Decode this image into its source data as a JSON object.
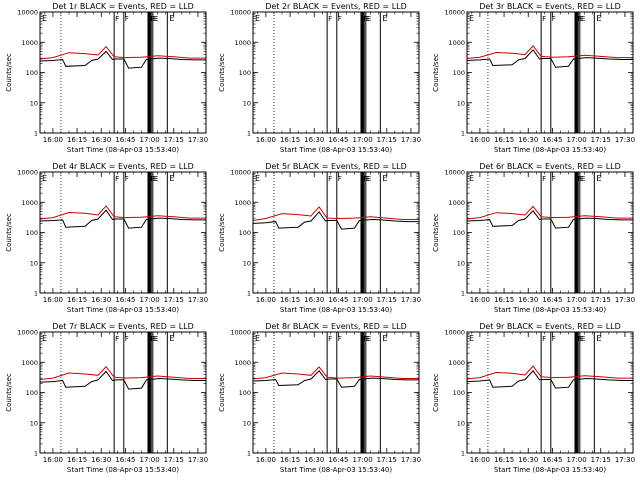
{
  "chart_data": [
    {
      "type": "line",
      "title": "Det 1r  BLACK = Events, RED = LLD",
      "xlabel": "Start Time (08-Apr-03 15:53:40)",
      "ylabel": "Counts/sec",
      "x_tick_labels": [
        "16:00",
        "16:15",
        "16:30",
        "16:45",
        "17:00",
        "17:15",
        "17:30"
      ],
      "xlim": [
        "15:52",
        "17:35"
      ],
      "y_scale": "log",
      "ylim": [
        1,
        10000
      ],
      "y_tick_labels": [
        "1",
        "10",
        "100",
        "1000",
        "10000"
      ],
      "series": [
        {
          "name": "Events",
          "color": "#000000",
          "x": [
            "15:52",
            "16:00",
            "16:06",
            "16:08",
            "16:20",
            "16:24",
            "16:28",
            "16:33",
            "16:37",
            "16:39",
            "16:44",
            "16:47",
            "16:55",
            "16:58",
            "17:06",
            "17:12",
            "17:20",
            "17:28",
            "17:35"
          ],
          "values": [
            240,
            250,
            270,
            160,
            170,
            250,
            280,
            500,
            270,
            280,
            280,
            140,
            150,
            270,
            300,
            290,
            270,
            260,
            260
          ]
        },
        {
          "name": "LLD",
          "color": "#cc0000",
          "x": [
            "15:52",
            "16:00",
            "16:10",
            "16:20",
            "16:28",
            "16:33",
            "16:38",
            "16:45",
            "16:55",
            "17:05",
            "17:15",
            "17:25",
            "17:35"
          ],
          "values": [
            280,
            310,
            450,
            420,
            380,
            720,
            330,
            310,
            320,
            360,
            330,
            300,
            300
          ]
        }
      ]
    },
    {
      "type": "line",
      "title": "Det 2r  BLACK = Events, RED = LLD",
      "xlabel": "Start Time (08-Apr-03 15:53:40)",
      "ylabel": "Counts/sec",
      "x_tick_labels": [
        "16:00",
        "16:15",
        "16:30",
        "16:45",
        "17:00",
        "17:15",
        "17:30"
      ],
      "xlim": [
        "15:52",
        "17:35"
      ],
      "y_scale": "log",
      "ylim": [
        1,
        10000
      ],
      "y_tick_labels": [
        "1",
        "10",
        "100",
        "1000",
        "10000"
      ],
      "series": []
    },
    {
      "type": "line",
      "title": "Det 3r  BLACK = Events, RED = LLD",
      "xlabel": "Start Time (08-Apr-03 15:53:40)",
      "ylabel": "Counts/sec",
      "x_tick_labels": [
        "16:00",
        "16:15",
        "16:30",
        "16:45",
        "17:00",
        "17:15",
        "17:30"
      ],
      "xlim": [
        "15:52",
        "17:35"
      ],
      "y_scale": "log",
      "ylim": [
        1,
        10000
      ],
      "y_tick_labels": [
        "1",
        "10",
        "100",
        "1000",
        "10000"
      ],
      "series": [
        {
          "name": "Events",
          "color": "#000000",
          "x": [
            "15:52",
            "16:00",
            "16:06",
            "16:08",
            "16:20",
            "16:24",
            "16:28",
            "16:33",
            "16:37",
            "16:39",
            "16:44",
            "16:47",
            "16:55",
            "16:58",
            "17:06",
            "17:12",
            "17:20",
            "17:28",
            "17:35"
          ],
          "values": [
            250,
            260,
            280,
            170,
            180,
            260,
            290,
            560,
            280,
            290,
            290,
            150,
            160,
            280,
            310,
            300,
            280,
            270,
            270
          ]
        },
        {
          "name": "LLD",
          "color": "#cc0000",
          "x": [
            "15:52",
            "16:00",
            "16:10",
            "16:20",
            "16:28",
            "16:33",
            "16:38",
            "16:45",
            "16:55",
            "17:05",
            "17:15",
            "17:25",
            "17:35"
          ],
          "values": [
            290,
            320,
            460,
            430,
            390,
            760,
            340,
            320,
            330,
            370,
            340,
            310,
            310
          ]
        }
      ]
    },
    {
      "type": "line",
      "title": "Det 4r  BLACK = Events, RED = LLD",
      "xlabel": "Start Time (08-Apr-03 15:53:40)",
      "ylabel": "Counts/sec",
      "x_tick_labels": [
        "16:00",
        "16:15",
        "16:30",
        "16:45",
        "17:00",
        "17:15",
        "17:30"
      ],
      "xlim": [
        "15:52",
        "17:35"
      ],
      "y_scale": "log",
      "ylim": [
        1,
        10000
      ],
      "y_tick_labels": [
        "1",
        "10",
        "100",
        "1000",
        "10000"
      ],
      "series": [
        {
          "name": "Events",
          "color": "#000000",
          "x": [
            "15:52",
            "16:00",
            "16:06",
            "16:08",
            "16:20",
            "16:24",
            "16:28",
            "16:33",
            "16:37",
            "16:39",
            "16:44",
            "16:47",
            "16:55",
            "16:58",
            "17:06",
            "17:12",
            "17:20",
            "17:28",
            "17:35"
          ],
          "values": [
            240,
            250,
            260,
            150,
            160,
            250,
            280,
            540,
            270,
            280,
            280,
            140,
            150,
            270,
            300,
            290,
            270,
            260,
            260
          ]
        },
        {
          "name": "LLD",
          "color": "#cc0000",
          "x": [
            "15:52",
            "16:00",
            "16:10",
            "16:20",
            "16:28",
            "16:33",
            "16:38",
            "16:45",
            "16:55",
            "17:05",
            "17:15",
            "17:25",
            "17:35"
          ],
          "values": [
            280,
            310,
            460,
            430,
            380,
            750,
            330,
            310,
            320,
            360,
            330,
            300,
            300
          ]
        }
      ]
    },
    {
      "type": "line",
      "title": "Det 5r  BLACK = Events, RED = LLD",
      "xlabel": "Start Time (08-Apr-03 15:53:40)",
      "ylabel": "Counts/sec",
      "x_tick_labels": [
        "16:00",
        "16:15",
        "16:30",
        "16:45",
        "17:00",
        "17:15",
        "17:30"
      ],
      "xlim": [
        "15:52",
        "17:35"
      ],
      "y_scale": "log",
      "ylim": [
        1,
        10000
      ],
      "y_tick_labels": [
        "1",
        "10",
        "100",
        "1000",
        "10000"
      ],
      "series": [
        {
          "name": "Events",
          "color": "#000000",
          "x": [
            "15:52",
            "16:00",
            "16:06",
            "16:08",
            "16:20",
            "16:24",
            "16:28",
            "16:33",
            "16:37",
            "16:39",
            "16:44",
            "16:47",
            "16:55",
            "16:58",
            "17:06",
            "17:12",
            "17:20",
            "17:28",
            "17:35"
          ],
          "values": [
            200,
            210,
            230,
            140,
            150,
            220,
            240,
            480,
            240,
            250,
            250,
            130,
            140,
            250,
            270,
            260,
            240,
            230,
            230
          ]
        },
        {
          "name": "LLD",
          "color": "#cc0000",
          "x": [
            "15:52",
            "16:00",
            "16:10",
            "16:20",
            "16:28",
            "16:33",
            "16:38",
            "16:45",
            "16:55",
            "17:05",
            "17:15",
            "17:25",
            "17:35"
          ],
          "values": [
            250,
            290,
            420,
            390,
            350,
            700,
            300,
            290,
            300,
            330,
            300,
            270,
            270
          ]
        }
      ]
    },
    {
      "type": "line",
      "title": "Det 6r  BLACK = Events, RED = LLD",
      "xlabel": "Start Time (08-Apr-03 15:53:40)",
      "ylabel": "Counts/sec",
      "x_tick_labels": [
        "16:00",
        "16:15",
        "16:30",
        "16:45",
        "17:00",
        "17:15",
        "17:30"
      ],
      "xlim": [
        "15:52",
        "17:35"
      ],
      "y_scale": "log",
      "ylim": [
        1,
        10000
      ],
      "y_tick_labels": [
        "1",
        "10",
        "100",
        "1000",
        "10000"
      ],
      "series": [
        {
          "name": "Events",
          "color": "#000000",
          "x": [
            "15:52",
            "16:00",
            "16:06",
            "16:08",
            "16:20",
            "16:24",
            "16:28",
            "16:33",
            "16:37",
            "16:39",
            "16:44",
            "16:47",
            "16:55",
            "16:58",
            "17:06",
            "17:12",
            "17:20",
            "17:28",
            "17:35"
          ],
          "values": [
            240,
            250,
            270,
            160,
            170,
            250,
            280,
            520,
            270,
            280,
            280,
            140,
            150,
            270,
            300,
            290,
            270,
            260,
            260
          ]
        },
        {
          "name": "LLD",
          "color": "#cc0000",
          "x": [
            "15:52",
            "16:00",
            "16:10",
            "16:20",
            "16:28",
            "16:33",
            "16:38",
            "16:45",
            "16:55",
            "17:05",
            "17:15",
            "17:25",
            "17:35"
          ],
          "values": [
            280,
            310,
            450,
            420,
            380,
            730,
            330,
            310,
            320,
            360,
            330,
            300,
            300
          ]
        }
      ]
    },
    {
      "type": "line",
      "title": "Det 7r  BLACK = Events, RED = LLD",
      "xlabel": "Start Time (08-Apr-03 15:53:40)",
      "ylabel": "Counts/sec",
      "x_tick_labels": [
        "16:00",
        "16:15",
        "16:30",
        "16:45",
        "17:00",
        "17:15",
        "17:30"
      ],
      "xlim": [
        "15:52",
        "17:35"
      ],
      "y_scale": "log",
      "ylim": [
        1,
        10000
      ],
      "y_tick_labels": [
        "1",
        "10",
        "100",
        "1000",
        "10000"
      ],
      "series": [
        {
          "name": "Events",
          "color": "#000000",
          "x": [
            "15:52",
            "16:00",
            "16:06",
            "16:08",
            "16:20",
            "16:24",
            "16:28",
            "16:33",
            "16:37",
            "16:39",
            "16:44",
            "16:47",
            "16:55",
            "16:58",
            "17:06",
            "17:12",
            "17:20",
            "17:28",
            "17:35"
          ],
          "values": [
            220,
            230,
            250,
            150,
            160,
            230,
            260,
            500,
            250,
            260,
            260,
            130,
            140,
            260,
            290,
            280,
            260,
            250,
            250
          ]
        },
        {
          "name": "LLD",
          "color": "#cc0000",
          "x": [
            "15:52",
            "16:00",
            "16:10",
            "16:20",
            "16:28",
            "16:33",
            "16:38",
            "16:45",
            "16:55",
            "17:05",
            "17:15",
            "17:25",
            "17:35"
          ],
          "values": [
            270,
            300,
            440,
            410,
            370,
            720,
            320,
            300,
            310,
            350,
            320,
            290,
            290
          ]
        }
      ]
    },
    {
      "type": "line",
      "title": "Det 8r  BLACK = Events, RED = LLD",
      "xlabel": "Start Time (08-Apr-03 15:53:40)",
      "ylabel": "Counts/sec",
      "x_tick_labels": [
        "16:00",
        "16:15",
        "16:30",
        "16:45",
        "17:00",
        "17:15",
        "17:30"
      ],
      "xlim": [
        "15:52",
        "17:35"
      ],
      "y_scale": "log",
      "ylim": [
        1,
        10000
      ],
      "y_tick_labels": [
        "1",
        "10",
        "100",
        "1000",
        "10000"
      ],
      "series": [
        {
          "name": "Events",
          "color": "#000000",
          "x": [
            "15:52",
            "16:00",
            "16:06",
            "16:08",
            "16:20",
            "16:24",
            "16:28",
            "16:33",
            "16:37",
            "16:39",
            "16:44",
            "16:47",
            "16:55",
            "16:58",
            "17:06",
            "17:12",
            "17:20",
            "17:28",
            "17:35"
          ],
          "values": [
            240,
            250,
            270,
            170,
            180,
            250,
            280,
            520,
            270,
            280,
            280,
            150,
            160,
            270,
            300,
            290,
            270,
            260,
            260
          ]
        },
        {
          "name": "LLD",
          "color": "#cc0000",
          "x": [
            "15:52",
            "16:00",
            "16:10",
            "16:20",
            "16:28",
            "16:33",
            "16:38",
            "16:45",
            "16:55",
            "17:05",
            "17:15",
            "17:25",
            "17:35"
          ],
          "values": [
            280,
            310,
            440,
            410,
            370,
            700,
            320,
            300,
            310,
            350,
            320,
            290,
            290
          ]
        }
      ]
    },
    {
      "type": "line",
      "title": "Det 9r  BLACK = Events, RED = LLD",
      "xlabel": "Start Time (08-Apr-03 15:53:40)",
      "ylabel": "Counts/sec",
      "x_tick_labels": [
        "16:00",
        "16:15",
        "16:30",
        "16:45",
        "17:00",
        "17:15",
        "17:30"
      ],
      "xlim": [
        "15:52",
        "17:35"
      ],
      "y_scale": "log",
      "ylim": [
        1,
        10000
      ],
      "y_tick_labels": [
        "1",
        "10",
        "100",
        "1000",
        "10000"
      ],
      "series": [
        {
          "name": "Events",
          "color": "#000000",
          "x": [
            "15:52",
            "16:00",
            "16:06",
            "16:08",
            "16:20",
            "16:24",
            "16:28",
            "16:33",
            "16:37",
            "16:39",
            "16:44",
            "16:47",
            "16:55",
            "16:58",
            "17:06",
            "17:12",
            "17:20",
            "17:28",
            "17:35"
          ],
          "values": [
            230,
            240,
            260,
            150,
            160,
            240,
            270,
            520,
            260,
            270,
            270,
            140,
            150,
            260,
            290,
            280,
            260,
            250,
            250
          ]
        },
        {
          "name": "LLD",
          "color": "#cc0000",
          "x": [
            "15:52",
            "16:00",
            "16:10",
            "16:20",
            "16:28",
            "16:33",
            "16:38",
            "16:45",
            "16:55",
            "17:05",
            "17:15",
            "17:25",
            "17:35"
          ],
          "values": [
            280,
            310,
            460,
            430,
            380,
            740,
            330,
            310,
            320,
            360,
            330,
            300,
            300
          ]
        }
      ]
    }
  ],
  "time_markers": {
    "dotted": [
      "16:05"
    ],
    "solid": [
      "16:38",
      "16:44",
      "16:59",
      "17:00",
      "17:01",
      "17:02",
      "17:11"
    ],
    "thick": [
      "17:00"
    ]
  },
  "corner_labels": {
    "left": "E",
    "right": "E"
  },
  "marker_labels": [
    "F",
    "F",
    "F",
    "F",
    "E",
    "E"
  ]
}
